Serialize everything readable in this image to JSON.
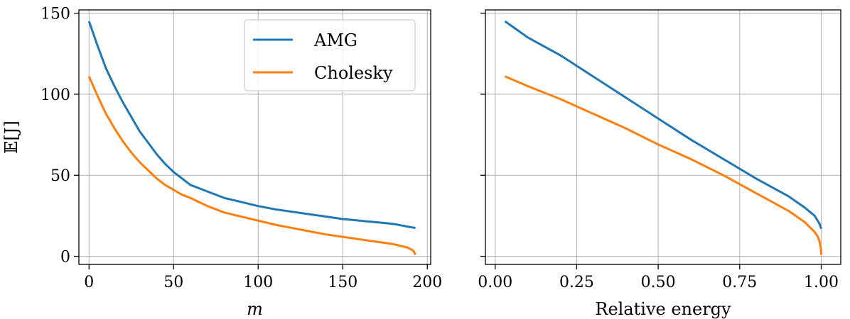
{
  "chart_data": [
    {
      "type": "line",
      "xlabel": "m",
      "ylabel": "𝔼[J]",
      "xlim": [
        -6,
        202
      ],
      "ylim": [
        -5,
        152
      ],
      "xticks": [
        "0",
        "50",
        "100",
        "150",
        "200"
      ],
      "xtick_values": [
        0,
        50,
        100,
        150,
        200
      ],
      "yticks": [
        "0",
        "50",
        "100",
        "150"
      ],
      "ytick_values": [
        0,
        50,
        100,
        150
      ],
      "grid": true,
      "legend_position": "top-right",
      "series": [
        {
          "name": "AMG",
          "color": "#1f77b4",
          "x": [
            0,
            5,
            10,
            15,
            20,
            25,
            30,
            35,
            40,
            45,
            50,
            55,
            60,
            70,
            80,
            90,
            100,
            110,
            120,
            130,
            140,
            150,
            160,
            170,
            180,
            190,
            193
          ],
          "y": [
            145,
            130,
            116,
            105,
            95,
            86,
            77,
            70,
            63,
            57,
            52,
            48,
            44,
            40,
            36,
            33.5,
            31,
            29,
            27.5,
            26,
            24.5,
            23,
            22,
            21,
            20,
            18,
            17.5
          ]
        },
        {
          "name": "Cholesky",
          "color": "#ff7f0e",
          "x": [
            0,
            5,
            10,
            15,
            20,
            25,
            30,
            35,
            40,
            45,
            50,
            55,
            60,
            70,
            80,
            90,
            100,
            110,
            120,
            130,
            140,
            150,
            160,
            170,
            180,
            188,
            191,
            192,
            193
          ],
          "y": [
            111,
            99,
            88,
            79,
            71,
            64,
            58,
            53,
            48,
            44,
            41,
            38,
            36,
            31,
            27,
            24.5,
            22,
            19.5,
            17.5,
            15.5,
            13.5,
            12,
            10.5,
            9,
            7.5,
            5.5,
            4,
            3,
            1
          ]
        }
      ]
    },
    {
      "type": "line",
      "xlabel": "Relative energy",
      "ylabel": "",
      "xlim": [
        -0.03,
        1.06
      ],
      "ylim": [
        -5,
        152
      ],
      "xticks": [
        "0.00",
        "0.25",
        "0.50",
        "0.75",
        "1.00"
      ],
      "xtick_values": [
        0,
        0.25,
        0.5,
        0.75,
        1.0
      ],
      "yticks": [],
      "ytick_values": [
        0,
        50,
        100,
        150
      ],
      "grid": true,
      "series": [
        {
          "name": "AMG",
          "color": "#1f77b4",
          "x": [
            0.03,
            0.1,
            0.2,
            0.3,
            0.4,
            0.5,
            0.6,
            0.7,
            0.8,
            0.9,
            0.95,
            0.98,
            0.995,
            1.0
          ],
          "y": [
            145,
            135,
            124,
            111,
            98,
            85,
            72,
            60,
            48,
            37,
            30,
            25,
            20,
            17
          ]
        },
        {
          "name": "Cholesky",
          "color": "#ff7f0e",
          "x": [
            0.03,
            0.1,
            0.2,
            0.3,
            0.4,
            0.5,
            0.6,
            0.7,
            0.8,
            0.9,
            0.95,
            0.98,
            0.99,
            0.995,
            0.999,
            1.0
          ],
          "y": [
            111,
            105,
            97,
            88,
            79,
            69,
            60,
            50,
            39,
            28,
            21,
            15,
            12,
            9,
            5,
            1
          ]
        }
      ]
    }
  ]
}
